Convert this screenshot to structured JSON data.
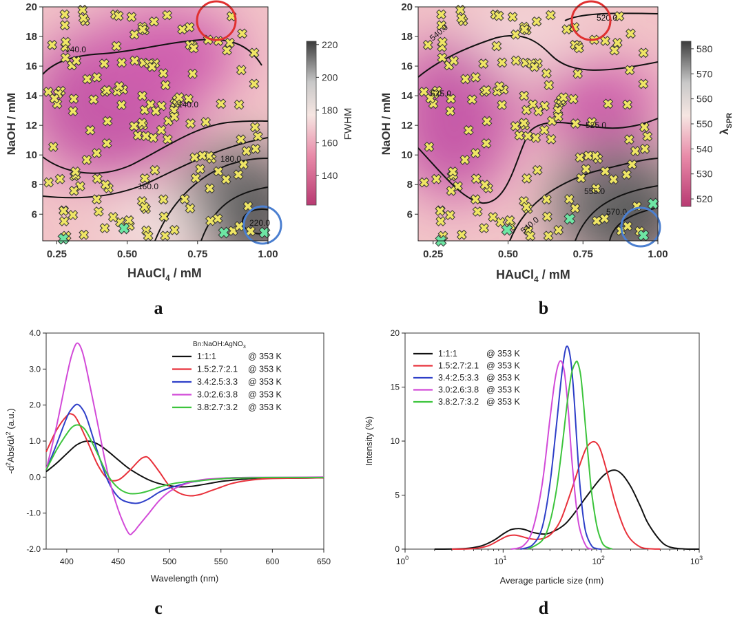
{
  "colors": {
    "contour_low": "#c2477a",
    "contour_mid": "#f4c9c9",
    "contour_high": "#4a4a4a",
    "marker_fill": "#efe565",
    "marker_green": "#6ee6a4",
    "circle_red": "#e03030",
    "circle_blue": "#4b7fd0",
    "series_black": "#111111",
    "series_red": "#e8303a",
    "series_blue": "#2e3fc8",
    "series_magenta": "#d24ad8",
    "series_green": "#3cc43c"
  },
  "panel_labels": {
    "a": "a",
    "b": "b",
    "c": "c",
    "d": "d"
  },
  "chart_data": [
    {
      "id": "a",
      "type": "heatmap",
      "xlabel_main": "HAuCl",
      "xlabel_sub": "4",
      "xlabel_tail": " / mM",
      "ylabel": "NaOH / mM",
      "xlim": [
        0.2,
        1.0
      ],
      "ylim": [
        4.2,
        20
      ],
      "xticks": [
        "0.25",
        "0.50",
        "0.75",
        "1.00"
      ],
      "yticks": [
        "6",
        "8",
        "10",
        "12",
        "14",
        "16",
        "18",
        "20"
      ],
      "colorbar": {
        "label": "FWHM",
        "min": 122,
        "max": 222,
        "ticks": [
          "140",
          "160",
          "180",
          "200",
          "220"
        ]
      },
      "contour_labels": [
        "140.0",
        "140.0",
        "160.0",
        "180.0",
        "220.0"
      ],
      "highlight_circles": [
        {
          "x": 0.78,
          "y": 19.2,
          "color": "red"
        },
        {
          "x": 0.94,
          "y": 5.4,
          "color": "blue"
        }
      ]
    },
    {
      "id": "b",
      "type": "heatmap",
      "xlabel_main": "HAuCl",
      "xlabel_sub": "4",
      "xlabel_tail": " / mM",
      "ylabel": "NaOH / mM",
      "xlim": [
        0.2,
        1.0
      ],
      "ylim": [
        4.2,
        20
      ],
      "xticks": [
        "0.25",
        "0.50",
        "0.75",
        "1.00"
      ],
      "yticks": [
        "6",
        "8",
        "10",
        "12",
        "14",
        "16",
        "18",
        "20"
      ],
      "colorbar": {
        "label_main": "λ",
        "label_sub": "SPR",
        "min": 517,
        "max": 583,
        "ticks": [
          "520",
          "530",
          "540",
          "550",
          "560",
          "570",
          "580"
        ]
      },
      "contour_labels": [
        "525.0",
        "525.0",
        "520.0",
        "540.0",
        "555.0",
        "570.0",
        "540.0"
      ],
      "highlight_circles": [
        {
          "x": 0.78,
          "y": 19.2,
          "color": "red"
        },
        {
          "x": 0.94,
          "y": 5.4,
          "color": "blue"
        }
      ]
    },
    {
      "id": "c",
      "type": "line",
      "xlabel": "Wavelength (nm)",
      "ylabel_parts": [
        "-d",
        "2",
        "Abs/d",
        "λ",
        "2",
        " (a.u.)"
      ],
      "xlim": [
        380,
        650
      ],
      "ylim": [
        -2.0,
        4.0
      ],
      "xticks": [
        400,
        450,
        500,
        550,
        600,
        650
      ],
      "yticks": [
        "-2.0",
        "-1.0",
        "0.0",
        "1.0",
        "2.0",
        "3.0",
        "4.0"
      ],
      "legend_title": "Bn:NaOH:AgNO",
      "legend_title_sub": "3",
      "legend": [
        {
          "ratio": "1:1:1",
          "temp": "@ 353 K"
        },
        {
          "ratio": "1.5:2.7:2.1",
          "temp": "@ 353 K"
        },
        {
          "ratio": "3.4:2.5:3.3",
          "temp": "@ 353 K"
        },
        {
          "ratio": "3.0:2.6:3.8",
          "temp": "@ 353 K"
        },
        {
          "ratio": "3.8:2.7:3.2",
          "temp": "@ 353 K"
        }
      ],
      "series": [
        {
          "name": "1:1:1 @ 353 K",
          "color": "black",
          "x": [
            380,
            390,
            400,
            410,
            420,
            430,
            440,
            450,
            460,
            470,
            480,
            490,
            500,
            510,
            520,
            530,
            540,
            550,
            560,
            570,
            580,
            590,
            600,
            620,
            650
          ],
          "y": [
            0.15,
            0.38,
            0.65,
            0.9,
            1.0,
            0.92,
            0.72,
            0.48,
            0.25,
            0.07,
            -0.08,
            -0.18,
            -0.24,
            -0.27,
            -0.26,
            -0.22,
            -0.17,
            -0.12,
            -0.09,
            -0.06,
            -0.04,
            -0.03,
            -0.03,
            -0.03,
            -0.02
          ]
        },
        {
          "name": "1.5:2.7:2.1 @ 353 K",
          "color": "red",
          "x": [
            380,
            390,
            400,
            405,
            410,
            420,
            430,
            440,
            450,
            460,
            470,
            475,
            480,
            490,
            500,
            510,
            520,
            530,
            540,
            550,
            560,
            570,
            580,
            590,
            600,
            620,
            650
          ],
          "y": [
            0.7,
            1.3,
            1.7,
            1.75,
            1.6,
            1.0,
            0.35,
            -0.05,
            -0.08,
            0.15,
            0.45,
            0.55,
            0.52,
            0.15,
            -0.25,
            -0.45,
            -0.52,
            -0.48,
            -0.38,
            -0.28,
            -0.18,
            -0.12,
            -0.08,
            -0.05,
            -0.04,
            -0.03,
            -0.02
          ]
        },
        {
          "name": "3.4:2.5:3.3 @ 353 K",
          "color": "blue",
          "x": [
            380,
            390,
            400,
            405,
            410,
            415,
            420,
            430,
            440,
            450,
            460,
            470,
            480,
            490,
            500,
            510,
            520,
            530,
            540,
            550,
            560,
            580,
            600,
            650
          ],
          "y": [
            0.2,
            0.9,
            1.65,
            1.9,
            2.02,
            1.9,
            1.6,
            0.7,
            -0.1,
            -0.55,
            -0.7,
            -0.72,
            -0.6,
            -0.42,
            -0.3,
            -0.22,
            -0.15,
            -0.1,
            -0.06,
            -0.04,
            -0.02,
            -0.01,
            -0.01,
            -0.01
          ]
        },
        {
          "name": "3.0:2.6:3.8 @ 353 K",
          "color": "magenta",
          "x": [
            380,
            390,
            400,
            405,
            410,
            415,
            420,
            430,
            440,
            450,
            460,
            465,
            470,
            480,
            490,
            500,
            510,
            520,
            530,
            540,
            560,
            580,
            600,
            650
          ],
          "y": [
            0.2,
            1.4,
            2.8,
            3.4,
            3.72,
            3.5,
            2.9,
            1.5,
            0.1,
            -0.9,
            -1.55,
            -1.52,
            -1.35,
            -1.0,
            -0.65,
            -0.4,
            -0.25,
            -0.15,
            -0.08,
            -0.05,
            -0.02,
            -0.01,
            -0.01,
            0.0
          ]
        },
        {
          "name": "3.8:2.7:3.2 @ 353 K",
          "color": "green",
          "x": [
            380,
            390,
            400,
            405,
            410,
            415,
            420,
            430,
            440,
            450,
            460,
            470,
            480,
            490,
            500,
            510,
            520,
            530,
            540,
            550,
            560,
            580,
            600,
            650
          ],
          "y": [
            0.2,
            0.75,
            1.2,
            1.38,
            1.45,
            1.4,
            1.22,
            0.65,
            0.05,
            -0.3,
            -0.45,
            -0.45,
            -0.38,
            -0.28,
            -0.2,
            -0.15,
            -0.12,
            -0.1,
            -0.07,
            -0.05,
            -0.03,
            -0.02,
            -0.01,
            -0.01
          ]
        }
      ]
    },
    {
      "id": "d",
      "type": "line",
      "xscale": "log",
      "xlabel": "Average particle size (nm)",
      "ylabel": "Intensity (%)",
      "xlim": [
        1,
        1000
      ],
      "ylim": [
        0,
        20
      ],
      "xticks": [
        {
          "base": "10",
          "exp": "0"
        },
        {
          "base": "10",
          "exp": "1"
        },
        {
          "base": "10",
          "exp": "2"
        },
        {
          "base": "10",
          "exp": "3"
        }
      ],
      "yticks": [
        "0",
        "5",
        "10",
        "15",
        "20"
      ],
      "legend": [
        {
          "ratio": "1:1:1",
          "temp": "@ 353 K"
        },
        {
          "ratio": "1.5:2.7:2.1",
          "temp": "@ 353 K"
        },
        {
          "ratio": "3.4:2.5:3.3",
          "temp": "@ 353 K"
        },
        {
          "ratio": "3.0:2.6:3.8",
          "temp": "@ 353 K"
        },
        {
          "ratio": "3.8:2.7:3.2",
          "temp": "@ 353 K"
        }
      ],
      "series": [
        {
          "name": "1:1:1 @ 353 K",
          "color": "black",
          "x": [
            2,
            4,
            6,
            8,
            10,
            12,
            14,
            16,
            18,
            20,
            25,
            30,
            40,
            50,
            70,
            100,
            130,
            160,
            200,
            250,
            300,
            400,
            500,
            700,
            1000
          ],
          "y": [
            0,
            0.05,
            0.3,
            0.8,
            1.4,
            1.8,
            1.9,
            1.85,
            1.7,
            1.55,
            1.4,
            1.5,
            2.1,
            3.0,
            4.8,
            6.6,
            7.3,
            7.0,
            5.8,
            4.0,
            2.4,
            0.8,
            0.2,
            0.02,
            0
          ]
        },
        {
          "name": "1.5:2.7:2.1 @ 353 K",
          "color": "red",
          "x": [
            3,
            5,
            7,
            9,
            11,
            13,
            15,
            18,
            22,
            26,
            30,
            35,
            40,
            50,
            60,
            70,
            80,
            90,
            100,
            120,
            140,
            170,
            200,
            250,
            300,
            400
          ],
          "y": [
            0,
            0.05,
            0.3,
            0.8,
            1.2,
            1.3,
            1.2,
            1.0,
            0.9,
            1.0,
            1.3,
            2.0,
            3.0,
            5.5,
            7.7,
            9.3,
            9.9,
            9.8,
            9.0,
            6.5,
            4.2,
            2.0,
            0.9,
            0.2,
            0.05,
            0
          ]
        },
        {
          "name": "3.4:2.5:3.3 @ 353 K",
          "color": "blue",
          "x": [
            15,
            20,
            25,
            30,
            35,
            40,
            44,
            48,
            52,
            56,
            60,
            65,
            70,
            80,
            90,
            100
          ],
          "y": [
            0,
            0.4,
            2.0,
            6.0,
            11.5,
            16.5,
            18.7,
            18.0,
            15.0,
            10.5,
            6.5,
            3.3,
            1.5,
            0.3,
            0.05,
            0
          ]
        },
        {
          "name": "3.0:2.6:3.8 @ 353 K",
          "color": "magenta",
          "x": [
            12,
            16,
            20,
            25,
            30,
            34,
            38,
            42,
            46,
            50,
            55,
            60,
            70,
            80
          ],
          "y": [
            0,
            0.3,
            1.8,
            6.0,
            12.0,
            15.8,
            17.4,
            16.5,
            13.0,
            8.5,
            4.5,
            2.0,
            0.3,
            0
          ]
        },
        {
          "name": "3.8:2.7:3.2 @ 353 K",
          "color": "green",
          "x": [
            18,
            25,
            30,
            35,
            40,
            45,
            50,
            55,
            58,
            62,
            66,
            70,
            75,
            80,
            90,
            100,
            110,
            130
          ],
          "y": [
            0,
            0.8,
            2.5,
            5.5,
            9.5,
            13.5,
            16.3,
            17.3,
            17.2,
            16.0,
            13.5,
            10.8,
            7.8,
            5.2,
            2.2,
            0.8,
            0.25,
            0
          ]
        }
      ]
    }
  ]
}
